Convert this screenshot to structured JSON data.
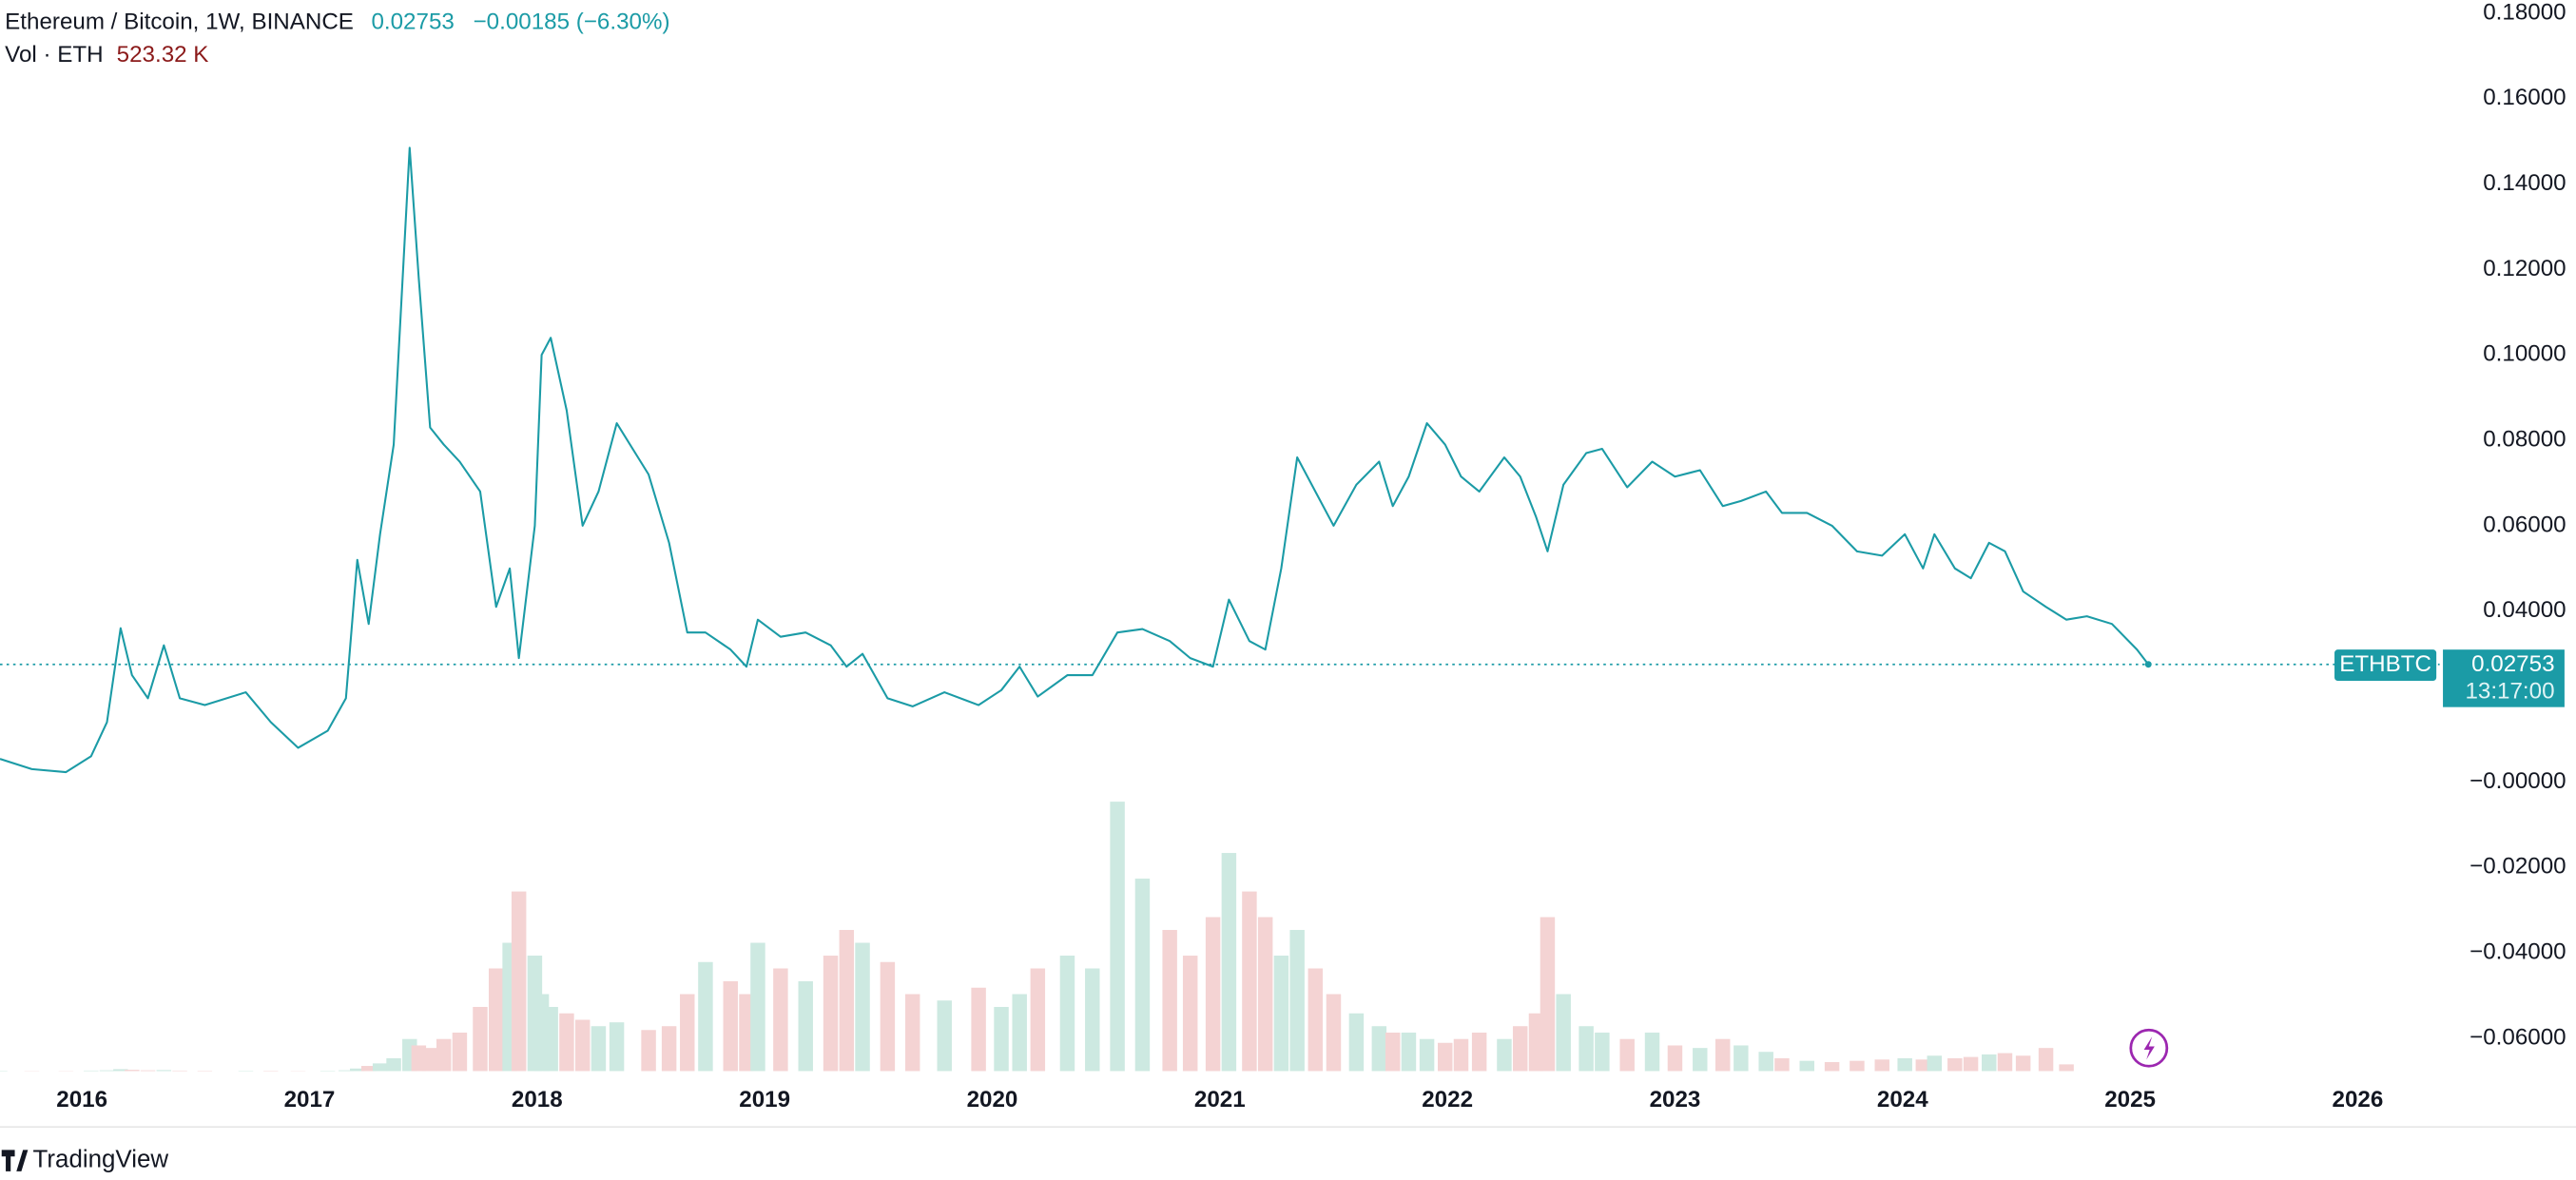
{
  "chart_data": {
    "type": "line",
    "title": "Ethereum / Bitcoin, 1W, BINANCE",
    "change_label": "−0.00185 (−6.30%)",
    "countdown": "13:17:00",
    "brand": "TradingView",
    "x": [
      2015.64,
      2015.78,
      2015.93,
      2016.04,
      2016.11,
      2016.17,
      2016.22,
      2016.29,
      2016.36,
      2016.43,
      2016.54,
      2016.72,
      2016.83,
      2016.95,
      2017.08,
      2017.16,
      2017.21,
      2017.26,
      2017.31,
      2017.37,
      2017.44,
      2017.48,
      2017.53,
      2017.59,
      2017.66,
      2017.75,
      2017.82,
      2017.88,
      2017.92,
      2017.99,
      2018.02,
      2018.06,
      2018.13,
      2018.2,
      2018.27,
      2018.35,
      2018.49,
      2018.58,
      2018.66,
      2018.74,
      2018.85,
      2018.92,
      2018.97,
      2019.07,
      2019.18,
      2019.29,
      2019.36,
      2019.43,
      2019.54,
      2019.65,
      2019.79,
      2019.94,
      2020.04,
      2020.12,
      2020.2,
      2020.33,
      2020.44,
      2020.55,
      2020.66,
      2020.78,
      2020.87,
      2020.97,
      2021.04,
      2021.13,
      2021.2,
      2021.27,
      2021.34,
      2021.42,
      2021.5,
      2021.6,
      2021.7,
      2021.76,
      2021.83,
      2021.91,
      2021.99,
      2022.06,
      2022.14,
      2022.25,
      2022.32,
      2022.39,
      2022.44,
      2022.51,
      2022.61,
      2022.68,
      2022.79,
      2022.9,
      2023.0,
      2023.11,
      2023.21,
      2023.29,
      2023.4,
      2023.47,
      2023.58,
      2023.69,
      2023.8,
      2023.91,
      2024.01,
      2024.09,
      2024.14,
      2024.23,
      2024.3,
      2024.38,
      2024.45,
      2024.53,
      2024.63,
      2024.72,
      2024.81,
      2024.92,
      2025.03,
      2025.08
    ],
    "series": [
      {
        "name": "ETHBTC",
        "color": "#1b9ba6",
        "values": [
          0.0054,
          0.003,
          0.0023,
          0.006,
          0.014,
          0.036,
          0.025,
          0.0196,
          0.032,
          0.0196,
          0.018,
          0.021,
          0.014,
          0.008,
          0.012,
          0.0196,
          0.052,
          0.037,
          0.058,
          0.079,
          0.1485,
          0.118,
          0.083,
          0.079,
          0.075,
          0.068,
          0.041,
          0.05,
          0.029,
          0.06,
          0.1,
          0.104,
          0.087,
          0.06,
          0.068,
          0.084,
          0.072,
          0.056,
          0.035,
          0.035,
          0.031,
          0.027,
          0.038,
          0.034,
          0.035,
          0.032,
          0.027,
          0.03,
          0.0196,
          0.0177,
          0.021,
          0.018,
          0.0215,
          0.027,
          0.02,
          0.025,
          0.025,
          0.035,
          0.0358,
          0.033,
          0.029,
          0.027,
          0.0427,
          0.033,
          0.031,
          0.05,
          0.076,
          0.068,
          0.06,
          0.0696,
          0.075,
          0.0646,
          0.0715,
          0.084,
          0.079,
          0.0715,
          0.068,
          0.076,
          0.0715,
          0.062,
          0.054,
          0.0696,
          0.077,
          0.078,
          0.069,
          0.075,
          0.0715,
          0.073,
          0.0646,
          0.0658,
          0.068,
          0.063,
          0.063,
          0.06,
          0.054,
          0.053,
          0.058,
          0.05,
          0.058,
          0.05,
          0.0477,
          0.056,
          0.054,
          0.0446,
          0.041,
          0.038,
          0.0388,
          0.037,
          0.031,
          0.02753
        ]
      }
    ],
    "volume": {
      "name": "Vol · ETH",
      "last_label": "523.32 K",
      "ylim": [
        0,
        21000
      ],
      "up_color": "#cde9e1",
      "down_color": "#f4d3d3",
      "label_color": "#8b1a1a",
      "values": [
        30,
        20,
        20,
        40,
        60,
        150,
        100,
        60,
        80,
        40,
        30,
        30,
        30,
        20,
        30,
        60,
        200,
        400,
        600,
        1000,
        2500,
        2000,
        1800,
        2500,
        3000,
        5000,
        8000,
        10000,
        14000,
        9000,
        6000,
        5000,
        4500,
        4000,
        3500,
        3800,
        3200,
        3500,
        6000,
        8500,
        7000,
        6000,
        10000,
        8000,
        7000,
        9000,
        11000,
        10000,
        8500,
        6000,
        5500,
        6500,
        5000,
        6000,
        8000,
        9000,
        8000,
        21000,
        15000,
        11000,
        9000,
        12000,
        17000,
        14000,
        12000,
        9000,
        11000,
        8000,
        6000,
        4500,
        3500,
        3000,
        3000,
        2500,
        2200,
        2500,
        3000,
        2500,
        3500,
        4500,
        12000,
        6000,
        3500,
        3000,
        2500,
        3000,
        2000,
        1800,
        2500,
        2000,
        1500,
        1000,
        800,
        700,
        800,
        900,
        1000,
        900,
        1200,
        1000,
        1100,
        1300,
        1400,
        1200,
        1800,
        523.32
      ]
    },
    "xlim": [
      2015.64,
      2026.36
    ],
    "xticks": [
      2016,
      2017,
      2018,
      2019,
      2020,
      2021,
      2022,
      2023,
      2024,
      2025,
      2026
    ],
    "ylim": [
      -0.0677,
      0.1831
    ],
    "yticks": [
      {
        "value": 0.18,
        "label": "0.18000"
      },
      {
        "value": 0.16,
        "label": "0.16000"
      },
      {
        "value": 0.14,
        "label": "0.14000"
      },
      {
        "value": 0.12,
        "label": "0.12000"
      },
      {
        "value": 0.1,
        "label": "0.10000"
      },
      {
        "value": 0.08,
        "label": "0.08000"
      },
      {
        "value": 0.06,
        "label": "0.06000"
      },
      {
        "value": 0.04,
        "label": "0.04000"
      },
      {
        "value": 0,
        "label": "−0.00000"
      },
      {
        "value": -0.02,
        "label": "−0.02000"
      },
      {
        "value": -0.04,
        "label": "−0.04000"
      },
      {
        "value": -0.06,
        "label": "−0.06000"
      }
    ],
    "grid": false
  }
}
